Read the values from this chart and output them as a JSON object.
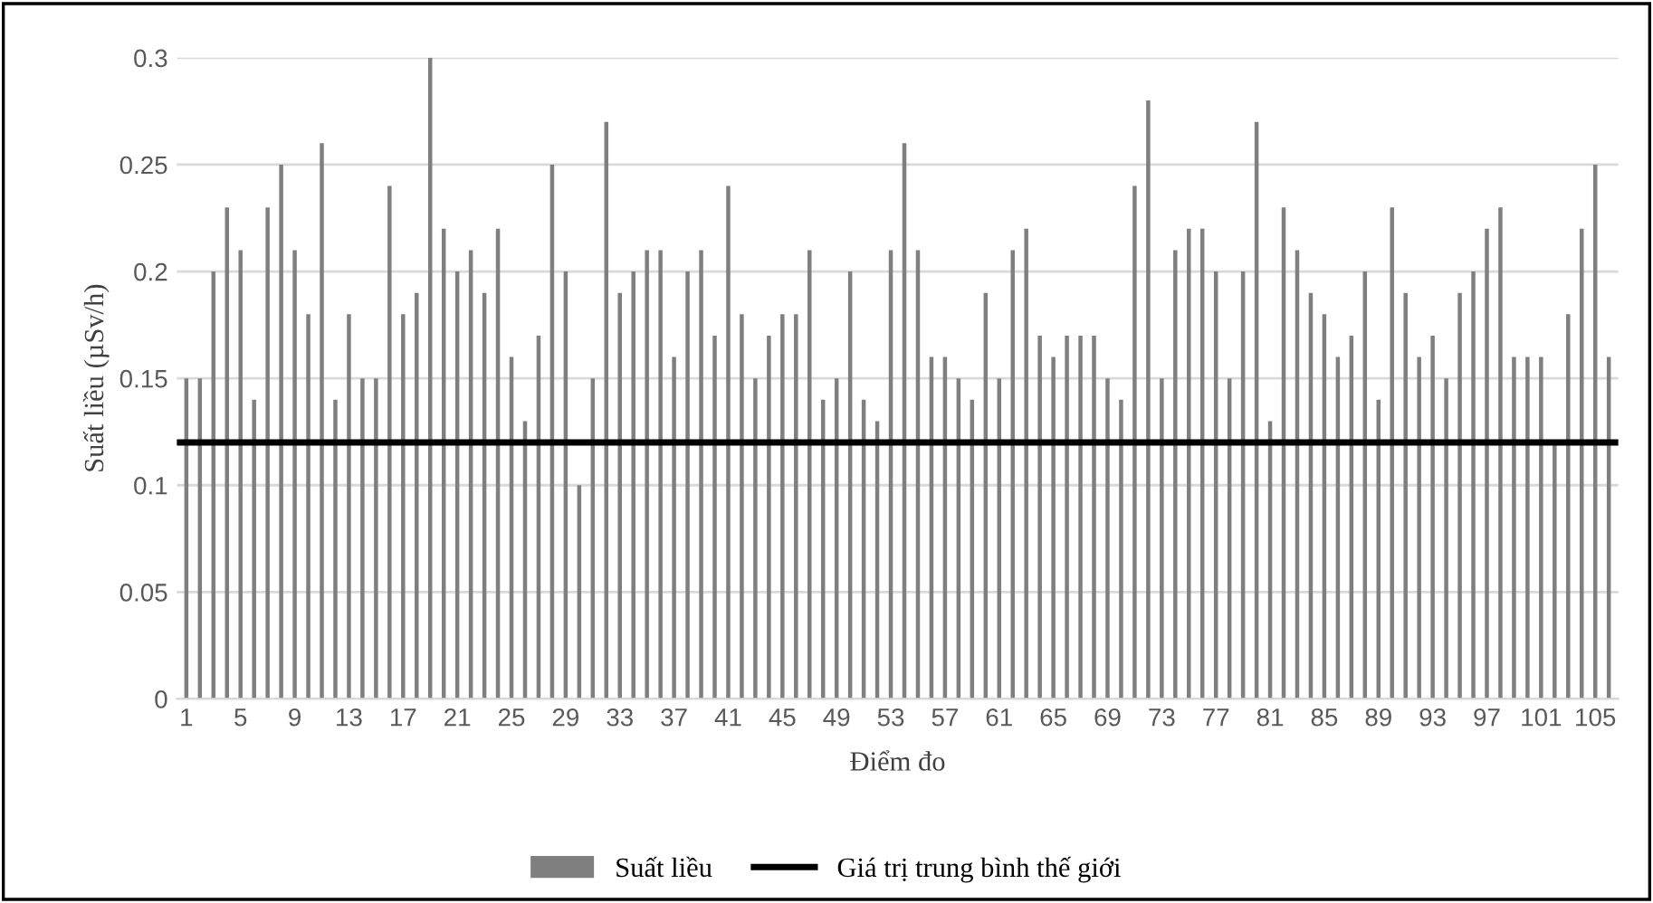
{
  "chart_data": {
    "type": "bar",
    "xlabel": "Điểm đo",
    "ylabel": "Suất liều (µSv/h)",
    "categories": [
      "1",
      null,
      null,
      null,
      "5",
      null,
      null,
      null,
      "9",
      null,
      null,
      null,
      "13",
      null,
      null,
      null,
      "17",
      null,
      null,
      null,
      "21",
      null,
      null,
      null,
      "25",
      null,
      null,
      null,
      "29",
      null,
      null,
      null,
      "33",
      null,
      null,
      null,
      "37",
      null,
      null,
      null,
      "41",
      null,
      null,
      null,
      "45",
      null,
      null,
      null,
      "49",
      null,
      null,
      null,
      "53",
      null,
      null,
      null,
      "57",
      null,
      null,
      null,
      "61",
      null,
      null,
      null,
      "65",
      null,
      null,
      null,
      "69",
      null,
      null,
      null,
      "73",
      null,
      null,
      null,
      "77",
      null,
      null,
      null,
      "81",
      null,
      null,
      null,
      "85",
      null,
      null,
      null,
      "89",
      null,
      null,
      null,
      "93",
      null,
      null,
      null,
      "97",
      null,
      null,
      null,
      "101",
      null,
      null,
      null,
      "105",
      null
    ],
    "series": [
      {
        "name": "Suất liều",
        "color": "#7f7f7f",
        "values": [
          0.15,
          0.15,
          0.2,
          0.23,
          0.21,
          0.14,
          0.23,
          0.25,
          0.21,
          0.18,
          0.26,
          0.14,
          0.18,
          0.15,
          0.15,
          0.24,
          0.18,
          0.19,
          0.3,
          0.22,
          0.2,
          0.21,
          0.19,
          0.22,
          0.16,
          0.13,
          0.17,
          0.25,
          0.2,
          0.1,
          0.15,
          0.27,
          0.19,
          0.2,
          0.21,
          0.21,
          0.16,
          0.2,
          0.21,
          0.17,
          0.24,
          0.18,
          0.15,
          0.17,
          0.18,
          0.18,
          0.21,
          0.14,
          0.15,
          0.2,
          0.14,
          0.13,
          0.21,
          0.26,
          0.21,
          0.16,
          0.16,
          0.15,
          0.14,
          0.19,
          0.15,
          0.21,
          0.22,
          0.17,
          0.16,
          0.17,
          0.17,
          0.17,
          0.15,
          0.14,
          0.24,
          0.28,
          0.15,
          0.21,
          0.22,
          0.22,
          0.2,
          0.15,
          0.2,
          0.27,
          0.13,
          0.23,
          0.21,
          0.19,
          0.18,
          0.16,
          0.17,
          0.2,
          0.14,
          0.23,
          0.19,
          0.16,
          0.17,
          0.15,
          0.19,
          0.2,
          0.22,
          0.23,
          0.16,
          0.16,
          0.16,
          0.12,
          0.18,
          0.22,
          0.25,
          0.16
        ]
      }
    ],
    "ref_lines": [
      {
        "axis": "y",
        "value": 0.12,
        "label": "Giá trị trung bình thế giới",
        "color": "#000000",
        "line_style": "solid"
      }
    ],
    "ylim": [
      0,
      0.3
    ],
    "yticks": [
      0,
      0.05,
      0.1,
      0.15,
      0.2,
      0.25,
      0.3
    ],
    "grid": "y",
    "legend": "bottom"
  }
}
